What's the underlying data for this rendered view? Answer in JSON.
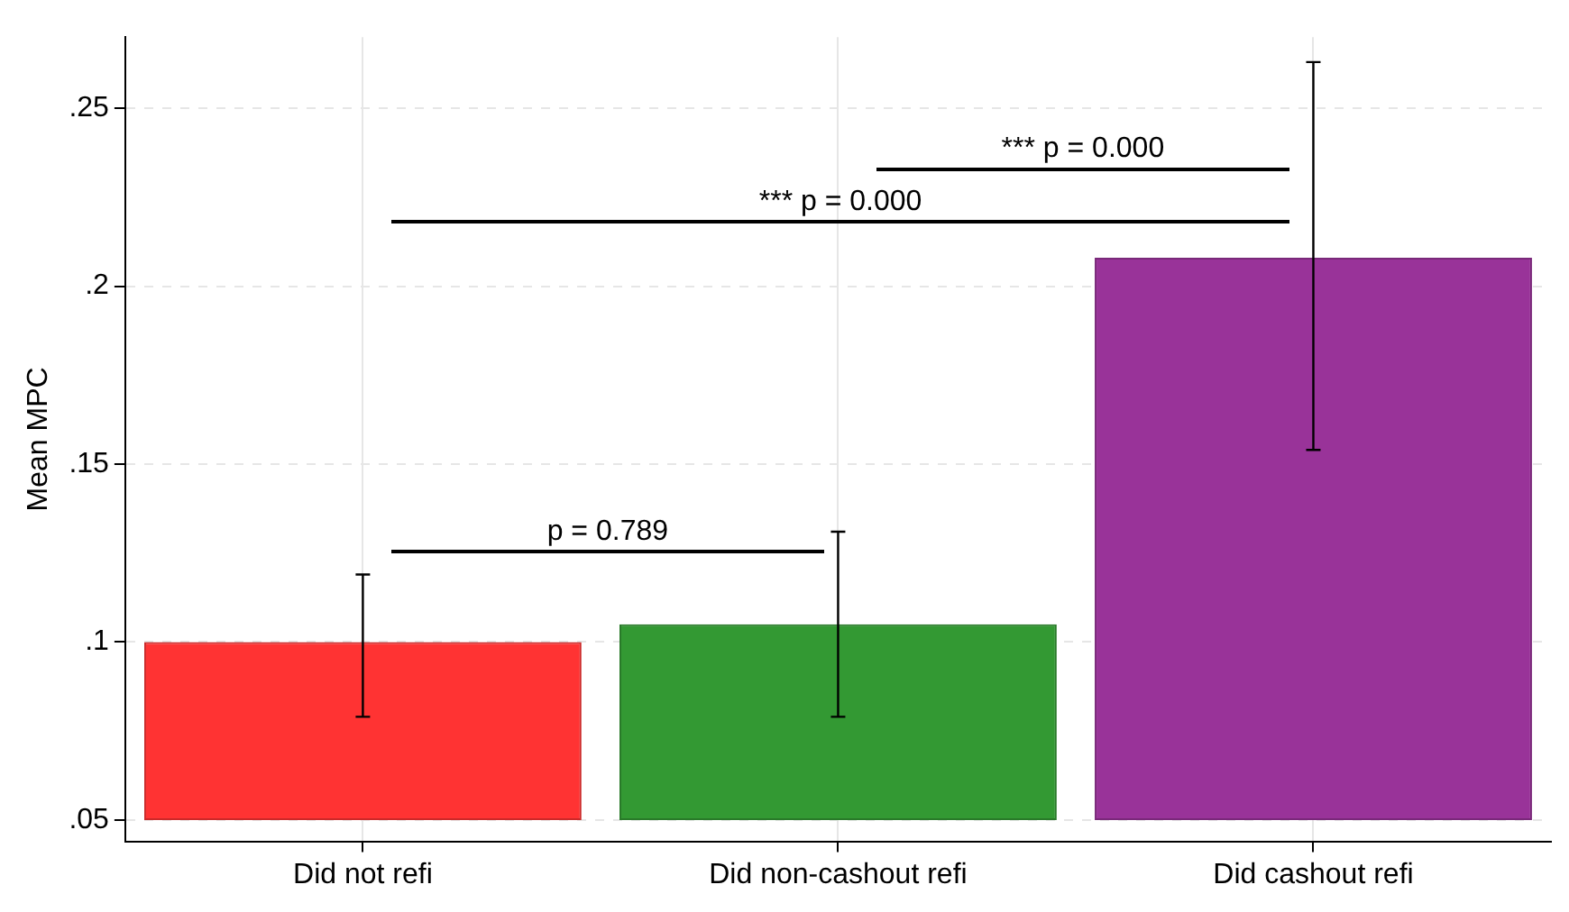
{
  "chart_data": {
    "type": "bar",
    "ylabel": "Mean MPC",
    "categories": [
      "Did not refi",
      "Did non-cashout refi",
      "Did cashout refi"
    ],
    "base": [
      0.05,
      0.05,
      0.05
    ],
    "values": [
      0.05,
      0.055,
      0.158
    ],
    "colors": [
      "#ff3333",
      "#339933",
      "#993399"
    ],
    "errors": [
      [
        0.079,
        0.119
      ],
      [
        0.079,
        0.131
      ],
      [
        0.154,
        0.263
      ]
    ],
    "ylim": [
      0.044,
      0.27
    ],
    "yticks": [
      {
        "value": 0.05,
        "label": ".05"
      },
      {
        "value": 0.1,
        "label": ".1"
      },
      {
        "value": 0.15,
        "label": ".15"
      },
      {
        "value": 0.2,
        "label": ".2"
      },
      {
        "value": 0.25,
        "label": ".25"
      }
    ],
    "annotations": [
      "p = 0.789",
      "*** p = 0.000",
      "*** p = 0.000"
    ],
    "grid": true
  }
}
